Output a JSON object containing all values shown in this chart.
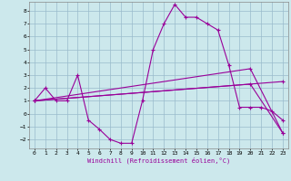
{
  "xlabel": "Windchill (Refroidissement éolien,°C)",
  "bg_color": "#cce8ec",
  "line_color": "#990099",
  "grid_color": "#99bbcc",
  "xlim": [
    -0.5,
    23.5
  ],
  "ylim": [
    -2.7,
    8.7
  ],
  "xticks": [
    0,
    1,
    2,
    3,
    4,
    5,
    6,
    7,
    8,
    9,
    10,
    11,
    12,
    13,
    14,
    15,
    16,
    17,
    18,
    19,
    20,
    21,
    22,
    23
  ],
  "yticks": [
    -2,
    -1,
    0,
    1,
    2,
    3,
    4,
    5,
    6,
    7,
    8
  ],
  "series": [
    {
      "x": [
        0,
        1,
        2,
        3,
        4,
        5,
        6,
        7,
        8,
        9,
        10,
        11,
        12,
        13,
        14,
        15,
        16,
        17,
        18,
        19,
        20,
        21,
        22,
        23
      ],
      "y": [
        1,
        2,
        1,
        1,
        3,
        -0.5,
        -1.2,
        -2.0,
        -2.3,
        -2.3,
        1,
        5,
        7,
        8.5,
        7.5,
        7.5,
        7,
        6.5,
        3.8,
        0.5,
        0.5,
        0.5,
        0.2,
        -0.5
      ]
    },
    {
      "x": [
        0,
        23
      ],
      "y": [
        1,
        2.5
      ]
    },
    {
      "x": [
        0,
        20,
        23
      ],
      "y": [
        1,
        3.5,
        -1.5
      ]
    },
    {
      "x": [
        0,
        20,
        23
      ],
      "y": [
        1,
        2.3,
        -1.5
      ]
    }
  ]
}
